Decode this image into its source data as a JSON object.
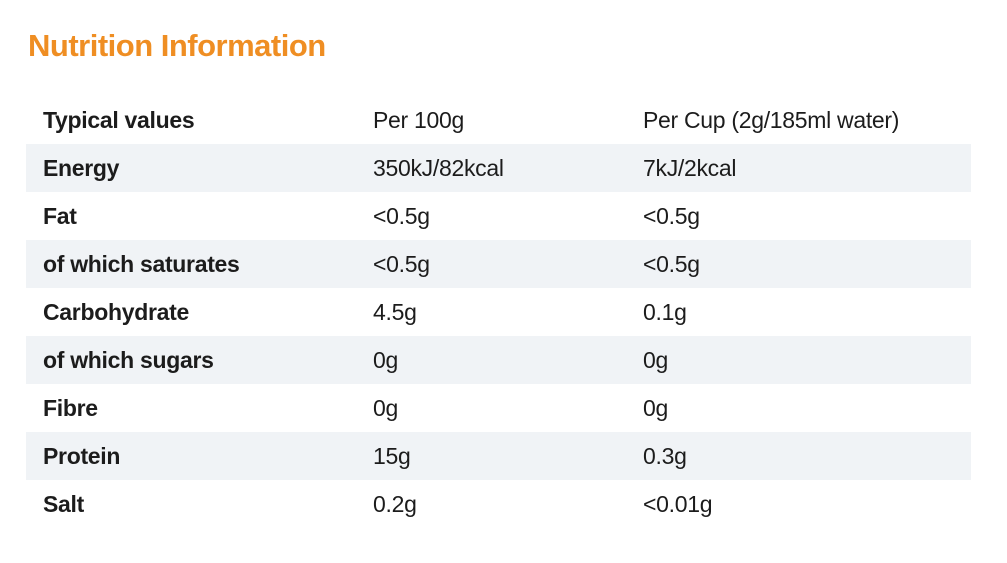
{
  "page": {
    "title": "Nutrition Information"
  },
  "colors": {
    "accent_orange": "#EF8E23",
    "row_stripe": "#F0F3F6",
    "text": "#1C1C1C"
  },
  "table": {
    "headers": [
      "Typical values",
      "Per 100g",
      "Per Cup (2g/185ml water)"
    ],
    "rows": [
      {
        "label": "Energy",
        "per_100g": "350kJ/82kcal",
        "per_cup": "7kJ/2kcal"
      },
      {
        "label": "Fat",
        "per_100g": "<0.5g",
        "per_cup": "<0.5g"
      },
      {
        "label": "of which saturates",
        "per_100g": "<0.5g",
        "per_cup": "<0.5g"
      },
      {
        "label": "Carbohydrate",
        "per_100g": "4.5g",
        "per_cup": "0.1g"
      },
      {
        "label": "of which sugars",
        "per_100g": "0g",
        "per_cup": "0g"
      },
      {
        "label": "Fibre",
        "per_100g": "0g",
        "per_cup": "0g"
      },
      {
        "label": "Protein",
        "per_100g": "15g",
        "per_cup": "0.3g"
      },
      {
        "label": "Salt",
        "per_100g": "0.2g",
        "per_cup": "<0.01g"
      }
    ]
  }
}
